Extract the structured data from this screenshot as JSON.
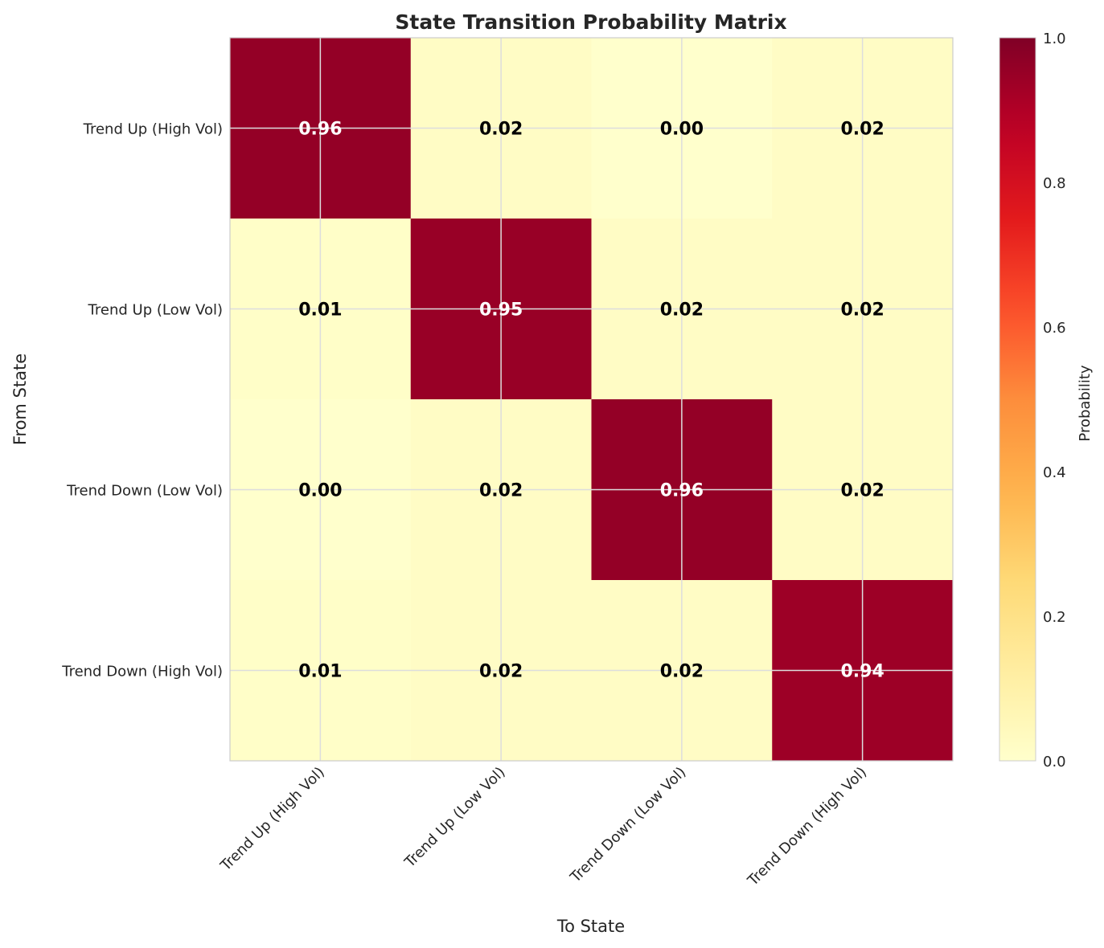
{
  "chart_data": {
    "type": "heatmap",
    "title": "State Transition Probability Matrix",
    "xlabel": "To State",
    "ylabel": "From State",
    "row_labels": [
      "Trend Up (High Vol)",
      "Trend Up (Low Vol)",
      "Trend Down (Low Vol)",
      "Trend Down (High Vol)"
    ],
    "col_labels": [
      "Trend Up (High Vol)",
      "Trend Up (Low Vol)",
      "Trend Down (Low Vol)",
      "Trend Down (High Vol)"
    ],
    "values": [
      [
        0.96,
        0.02,
        0.0,
        0.02
      ],
      [
        0.01,
        0.95,
        0.02,
        0.02
      ],
      [
        0.0,
        0.02,
        0.96,
        0.02
      ],
      [
        0.01,
        0.02,
        0.02,
        0.94
      ]
    ],
    "colormap": "YlOrRd",
    "colorbar": {
      "label": "Probability",
      "range": [
        0,
        1
      ],
      "ticks": [
        "0.0",
        "0.2",
        "0.4",
        "0.6",
        "0.8",
        "1.0"
      ]
    },
    "grid": true
  }
}
